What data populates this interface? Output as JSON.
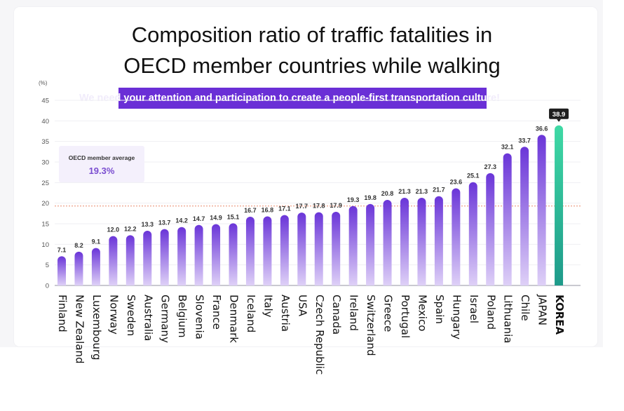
{
  "chart_data": {
    "type": "bar",
    "title": "Composition ratio of traffic fatalities in OECD member countries while walking",
    "title_lines": [
      "Composition ratio of traffic fatalities in",
      "OECD member countries while walking"
    ],
    "subtitle": "We need your attention and participation to create a people-first transportation culture!",
    "xlabel": "",
    "ylabel": "(%)",
    "ylim": [
      0,
      45
    ],
    "yticks": [
      0,
      5,
      10,
      15,
      20,
      25,
      30,
      35,
      40,
      45
    ],
    "grid": true,
    "categories": [
      "Finland",
      "New Zealand",
      "Luxembourg",
      "Norway",
      "Sweden",
      "Australia",
      "Germany",
      "Belgium",
      "Slovenia",
      "France",
      "Denmark",
      "Iceland",
      "Italy",
      "Austria",
      "USA",
      "Czech Republic",
      "Canada",
      "Ireland",
      "Switzerland",
      "Greece",
      "Portugal",
      "Mexico",
      "Spain",
      "Hungary",
      "Israel",
      "Poland",
      "Lithuania",
      "Chile",
      "JAPAN",
      "KOREA"
    ],
    "values": [
      7.1,
      8.2,
      9.1,
      12.0,
      12.2,
      13.3,
      13.7,
      14.2,
      14.7,
      14.9,
      15.1,
      16.7,
      16.8,
      17.1,
      17.7,
      17.8,
      17.9,
      19.3,
      19.8,
      20.8,
      21.3,
      21.3,
      21.7,
      23.6,
      25.1,
      27.3,
      32.1,
      33.7,
      36.6,
      38.9
    ],
    "value_labels": [
      "7.1",
      "8.2",
      "9.1",
      "12.0",
      "12.2",
      "13.3",
      "13.7",
      "14.2",
      "14.7",
      "14.9",
      "15.1",
      "16.7",
      "16.8",
      "17.1",
      "17.7",
      "17.8",
      "17.9",
      "19.3",
      "19.8",
      "20.8",
      "21.3",
      "21.3",
      "21.7",
      "23.6",
      "25.1",
      "27.3",
      "32.1",
      "33.7",
      "36.6",
      "38.9"
    ],
    "highlight": {
      "category": "KOREA",
      "value": 38.9,
      "color": "#2fc79a"
    },
    "reference_line": {
      "label": "OECD member average",
      "value": 19.3,
      "display": "19.3%",
      "color": "#e8876a"
    },
    "colors": {
      "bar_top": "#6a35d8",
      "bar_bottom": "#ded0f7",
      "highlight_top": "#3fd9a5",
      "highlight_bottom": "#1e9a8a",
      "banner": "#6a2fd6"
    }
  }
}
